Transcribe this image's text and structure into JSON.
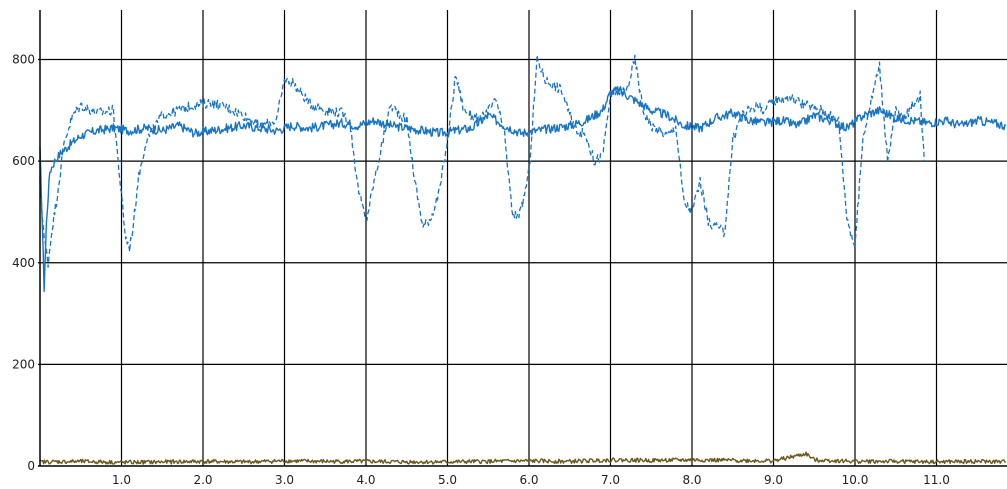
{
  "chart_data": {
    "type": "line",
    "title": "",
    "xlabel": "",
    "ylabel": "",
    "xlim": [
      0,
      11.85
    ],
    "ylim": [
      0,
      900
    ],
    "grid": true,
    "x_ticks": [
      {
        "value": 1,
        "label": "1.0"
      },
      {
        "value": 2,
        "label": "2.0"
      },
      {
        "value": 3,
        "label": "3.0"
      },
      {
        "value": 4,
        "label": "4.0"
      },
      {
        "value": 5,
        "label": "5.0"
      },
      {
        "value": 6,
        "label": "6.0"
      },
      {
        "value": 7,
        "label": "7.0"
      },
      {
        "value": 8,
        "label": "8.0"
      },
      {
        "value": 9,
        "label": "9.0"
      },
      {
        "value": 10,
        "label": "10.0"
      },
      {
        "value": 11,
        "label": "11.0"
      }
    ],
    "y_ticks": [
      {
        "value": 0,
        "label": "0"
      },
      {
        "value": 200,
        "label": "200"
      },
      {
        "value": 400,
        "label": "400"
      },
      {
        "value": 600,
        "label": "600"
      },
      {
        "value": 800,
        "label": "800"
      }
    ],
    "series": [
      {
        "style": "solid",
        "color": "#1874c4",
        "x": [
          0.0,
          0.03,
          0.05,
          0.08,
          0.12,
          0.18,
          0.25,
          0.35,
          0.5,
          0.7,
          0.9,
          1.1,
          1.3,
          1.5,
          1.7,
          1.9,
          2.1,
          2.3,
          2.5,
          2.7,
          2.9,
          3.1,
          3.3,
          3.5,
          3.7,
          3.9,
          4.1,
          4.3,
          4.5,
          4.7,
          4.9,
          5.1,
          5.3,
          5.5,
          5.7,
          5.9,
          6.1,
          6.3,
          6.5,
          6.7,
          6.9,
          7.0,
          7.1,
          7.3,
          7.5,
          7.7,
          7.9,
          8.1,
          8.3,
          8.5,
          8.7,
          8.9,
          9.1,
          9.3,
          9.5,
          9.7,
          9.9,
          10.1,
          10.3,
          10.5,
          10.7,
          10.9,
          11.1,
          11.3,
          11.5,
          11.7,
          11.85
        ],
        "y": [
          620,
          470,
          350,
          480,
          580,
          600,
          615,
          630,
          650,
          660,
          665,
          660,
          665,
          660,
          670,
          655,
          660,
          665,
          670,
          665,
          660,
          670,
          665,
          670,
          675,
          670,
          680,
          670,
          665,
          660,
          655,
          660,
          665,
          690,
          670,
          655,
          660,
          665,
          670,
          680,
          700,
          735,
          740,
          720,
          700,
          690,
          670,
          665,
          685,
          695,
          680,
          675,
          680,
          670,
          690,
          680,
          665,
          690,
          700,
          685,
          680,
          675,
          680,
          670,
          680,
          675,
          670
        ]
      },
      {
        "style": "dashed",
        "color": "#1874c4",
        "x": [
          0.0,
          0.05,
          0.1,
          0.15,
          0.2,
          0.25,
          0.3,
          0.4,
          0.5,
          0.7,
          0.9,
          1.0,
          1.05,
          1.1,
          1.15,
          1.2,
          1.3,
          1.5,
          1.7,
          1.9,
          2.1,
          2.3,
          2.5,
          2.7,
          2.9,
          3.0,
          3.1,
          3.3,
          3.5,
          3.7,
          3.8,
          3.9,
          4.0,
          4.1,
          4.3,
          4.5,
          4.6,
          4.7,
          4.8,
          4.9,
          5.0,
          5.1,
          5.2,
          5.4,
          5.6,
          5.7,
          5.8,
          5.9,
          6.0,
          6.1,
          6.2,
          6.4,
          6.5,
          6.6,
          6.7,
          6.8,
          6.9,
          7.0,
          7.2,
          7.3,
          7.4,
          7.5,
          7.6,
          7.7,
          7.8,
          7.9,
          8.0,
          8.1,
          8.2,
          8.3,
          8.4,
          8.5,
          8.6,
          8.7,
          8.8,
          8.9,
          9.0,
          9.2,
          9.4,
          9.6,
          9.7,
          9.8,
          9.9,
          10.0,
          10.1,
          10.3,
          10.4,
          10.5,
          10.6,
          10.7,
          10.8,
          10.85
        ],
        "y": [
          560,
          450,
          400,
          470,
          520,
          580,
          640,
          690,
          710,
          695,
          700,
          530,
          450,
          430,
          480,
          560,
          640,
          690,
          700,
          710,
          715,
          705,
          690,
          670,
          680,
          760,
          755,
          715,
          700,
          695,
          680,
          550,
          480,
          560,
          710,
          680,
          560,
          470,
          490,
          540,
          640,
          770,
          700,
          680,
          720,
          650,
          490,
          500,
          580,
          800,
          760,
          740,
          690,
          660,
          650,
          600,
          610,
          730,
          740,
          800,
          700,
          670,
          660,
          650,
          670,
          520,
          500,
          560,
          480,
          470,
          460,
          640,
          690,
          700,
          710,
          700,
          720,
          725,
          710,
          700,
          690,
          680,
          490,
          430,
          650,
          790,
          600,
          700,
          680,
          710,
          730,
          600
        ]
      },
      {
        "style": "solid",
        "color": "#6b5a1e",
        "x": [
          0.0,
          0.5,
          1.0,
          1.5,
          2.0,
          2.5,
          3.0,
          3.5,
          4.0,
          4.5,
          5.0,
          5.5,
          6.0,
          6.5,
          7.0,
          7.5,
          8.0,
          8.5,
          9.0,
          9.4,
          9.5,
          10.0,
          10.5,
          11.0,
          11.5,
          11.85
        ],
        "y": [
          8,
          9,
          7,
          8,
          9,
          8,
          10,
          9,
          9,
          8,
          8,
          9,
          10,
          9,
          12,
          11,
          12,
          11,
          10,
          24,
          12,
          9,
          9,
          8,
          9,
          8
        ]
      }
    ]
  }
}
